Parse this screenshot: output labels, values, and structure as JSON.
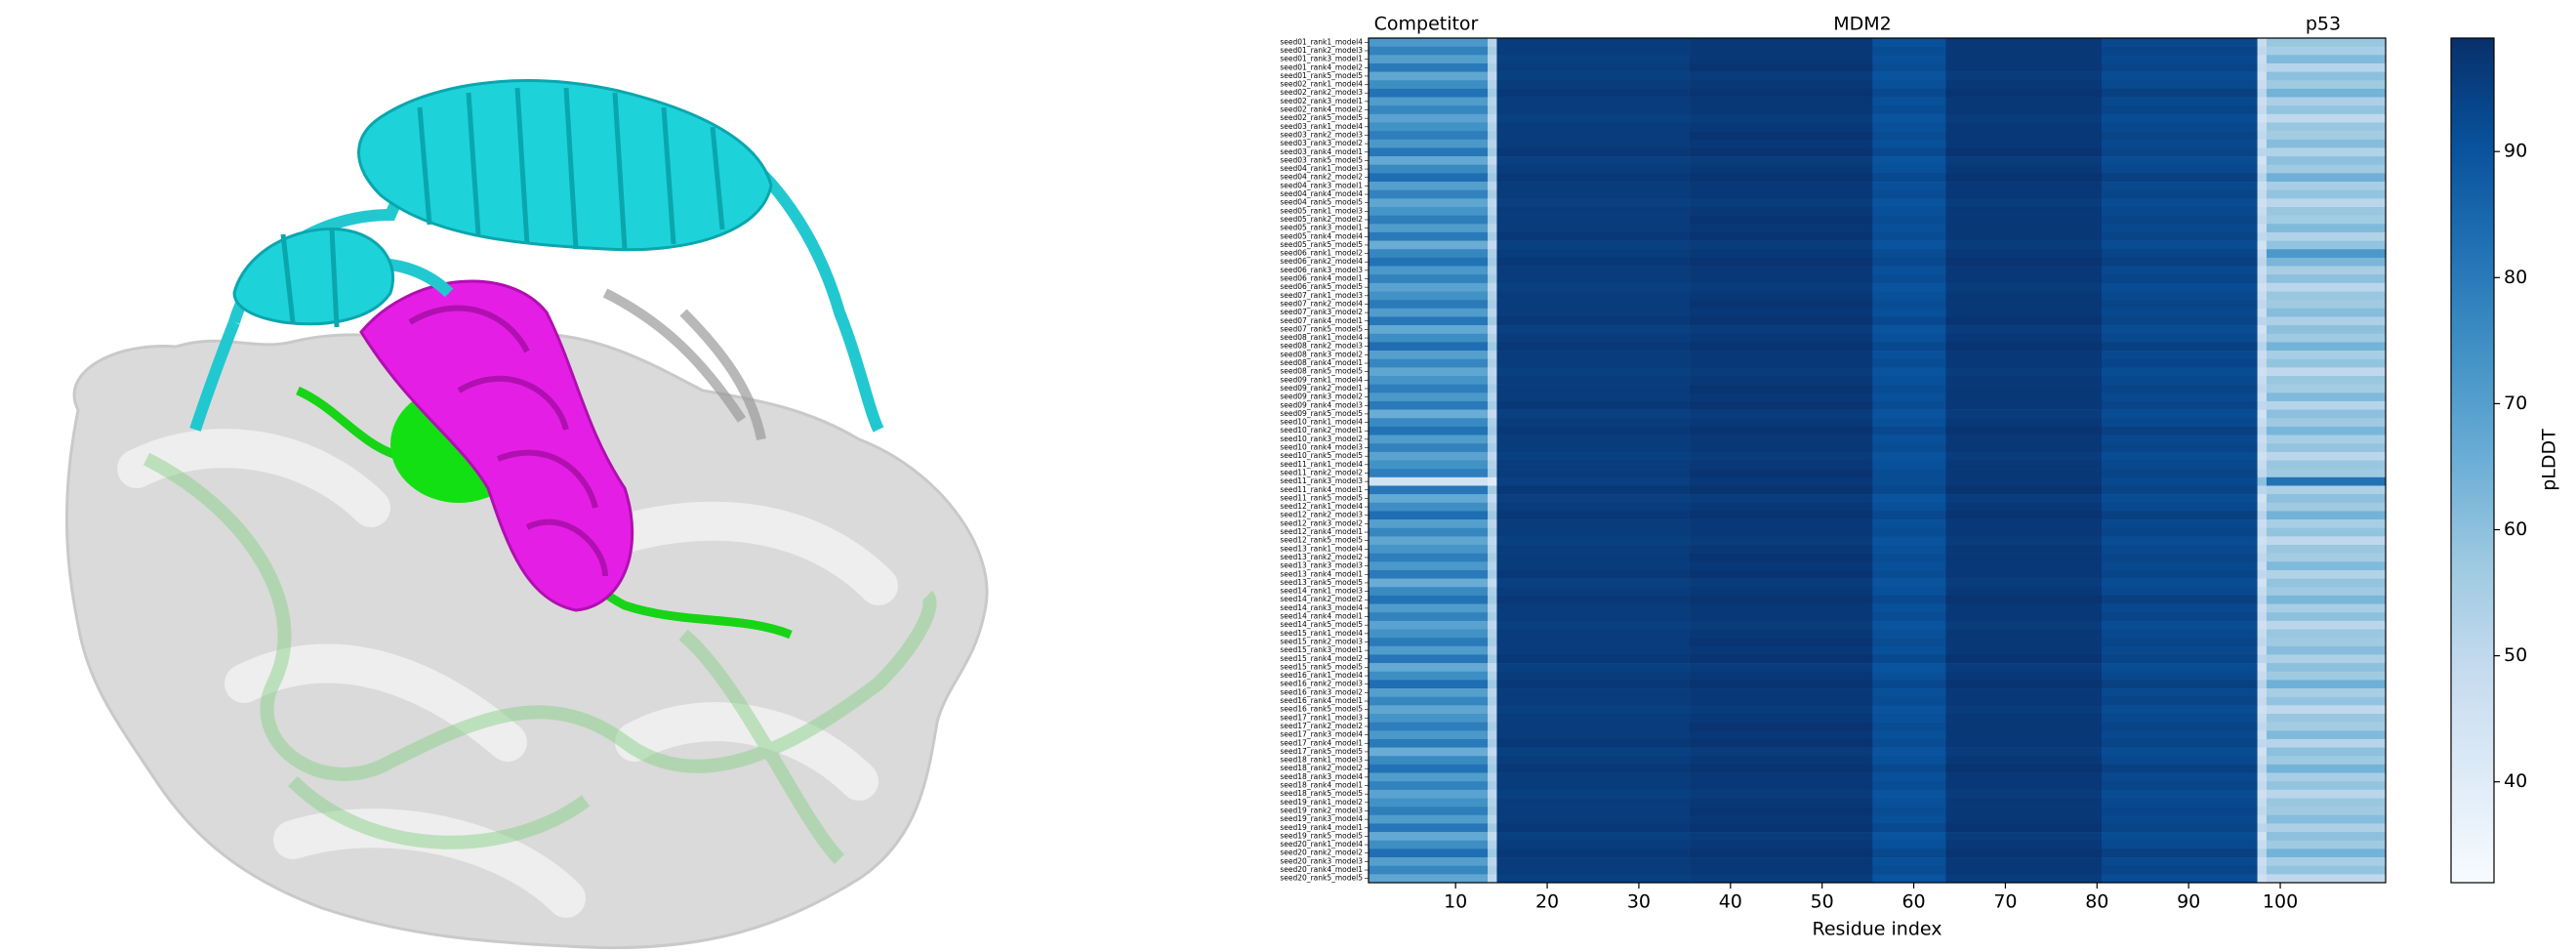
{
  "chart_data": {
    "type": "heatmap",
    "xlabel": "Residue index",
    "colorbar_label": "pLDDT",
    "region_labels": [
      "Competitor",
      "MDM2",
      "p53"
    ],
    "colormap": "Blues",
    "xlim": [
      0.5,
      111.5
    ],
    "xticks": [
      10,
      20,
      30,
      40,
      50,
      60,
      70,
      80,
      90,
      100
    ],
    "clim": [
      32,
      99
    ],
    "cticks": [
      40,
      50,
      60,
      70,
      80,
      90
    ],
    "x_edges": [
      0.5,
      13.5,
      14.5,
      35.5,
      55.5,
      63.5,
      80.5,
      97.5,
      98.5,
      111.5
    ],
    "rows": [
      "seed01_rank1_model4",
      "seed01_rank2_model3",
      "seed01_rank3_model1",
      "seed01_rank4_model2",
      "seed01_rank5_model5",
      "seed02_rank1_model4",
      "seed02_rank2_model3",
      "seed02_rank3_model1",
      "seed02_rank4_model2",
      "seed02_rank5_model5",
      "seed03_rank1_model4",
      "seed03_rank2_model3",
      "seed03_rank3_model2",
      "seed03_rank4_model1",
      "seed03_rank5_model5",
      "seed04_rank1_model3",
      "seed04_rank2_model2",
      "seed04_rank3_model1",
      "seed04_rank4_model4",
      "seed04_rank5_model5",
      "seed05_rank1_model3",
      "seed05_rank2_model2",
      "seed05_rank3_model1",
      "seed05_rank4_model4",
      "seed05_rank5_model5",
      "seed06_rank1_model2",
      "seed06_rank2_model4",
      "seed06_rank3_model3",
      "seed06_rank4_model1",
      "seed06_rank5_model5",
      "seed07_rank1_model3",
      "seed07_rank2_model4",
      "seed07_rank3_model2",
      "seed07_rank4_model1",
      "seed07_rank5_model5",
      "seed08_rank1_model4",
      "seed08_rank2_model3",
      "seed08_rank3_model2",
      "seed08_rank4_model1",
      "seed08_rank5_model5",
      "seed09_rank1_model4",
      "seed09_rank2_model1",
      "seed09_rank3_model2",
      "seed09_rank4_model3",
      "seed09_rank5_model5",
      "seed10_rank1_model4",
      "seed10_rank2_model1",
      "seed10_rank3_model2",
      "seed10_rank4_model3",
      "seed10_rank5_model5",
      "seed11_rank1_model4",
      "seed11_rank2_model2",
      "seed11_rank3_model3",
      "seed11_rank4_model1",
      "seed11_rank5_model5",
      "seed12_rank1_model4",
      "seed12_rank2_model3",
      "seed12_rank3_model2",
      "seed12_rank4_model1",
      "seed12_rank5_model5",
      "seed13_rank1_model4",
      "seed13_rank2_model2",
      "seed13_rank3_model3",
      "seed13_rank4_model1",
      "seed13_rank5_model5",
      "seed14_rank1_model3",
      "seed14_rank2_model2",
      "seed14_rank3_model4",
      "seed14_rank4_model1",
      "seed14_rank5_model5",
      "seed15_rank1_model4",
      "seed15_rank2_model3",
      "seed15_rank3_model1",
      "seed15_rank4_model2",
      "seed15_rank5_model5",
      "seed16_rank1_model4",
      "seed16_rank2_model3",
      "seed16_rank3_model2",
      "seed16_rank4_model1",
      "seed16_rank5_model5",
      "seed17_rank1_model3",
      "seed17_rank2_model2",
      "seed17_rank3_model4",
      "seed17_rank4_model1",
      "seed17_rank5_model5",
      "seed18_rank1_model3",
      "seed18_rank2_model2",
      "seed18_rank3_model4",
      "seed18_rank4_model1",
      "seed18_rank5_model5",
      "seed19_rank1_model2",
      "seed19_rank2_model3",
      "seed19_rank3_model4",
      "seed19_rank4_model1",
      "seed19_rank5_model5",
      "seed20_rank1_model4",
      "seed20_rank2_model2",
      "seed20_rank3_model3",
      "seed20_rank4_model1",
      "seed20_rank5_model5"
    ],
    "matrix": [
      [
        72,
        52,
        96,
        97,
        91,
        97,
        93,
        48,
        58
      ],
      [
        78,
        55,
        96,
        97,
        92,
        97,
        94,
        50,
        55
      ],
      [
        70,
        51,
        95,
        97,
        91,
        97,
        93,
        47,
        62
      ],
      [
        80,
        54,
        96,
        98,
        92,
        97,
        94,
        49,
        52
      ],
      [
        68,
        50,
        95,
        96,
        90,
        96,
        92,
        46,
        60
      ],
      [
        75,
        53,
        96,
        97,
        91,
        97,
        93,
        48,
        57
      ],
      [
        82,
        56,
        97,
        98,
        93,
        98,
        95,
        51,
        64
      ],
      [
        71,
        52,
        96,
        97,
        91,
        97,
        93,
        47,
        54
      ],
      [
        77,
        54,
        96,
        97,
        92,
        97,
        94,
        49,
        59
      ],
      [
        69,
        50,
        95,
        96,
        90,
        96,
        92,
        45,
        50
      ],
      [
        74,
        53,
        96,
        97,
        91,
        97,
        93,
        48,
        58
      ],
      [
        79,
        55,
        96,
        98,
        92,
        97,
        94,
        50,
        56
      ],
      [
        72,
        52,
        96,
        97,
        91,
        97,
        93,
        47,
        61
      ],
      [
        81,
        56,
        97,
        98,
        93,
        98,
        94,
        51,
        53
      ],
      [
        67,
        49,
        95,
        96,
        90,
        96,
        92,
        45,
        60
      ],
      [
        76,
        54,
        96,
        97,
        91,
        97,
        93,
        48,
        57
      ],
      [
        83,
        57,
        97,
        98,
        93,
        98,
        95,
        52,
        65
      ],
      [
        70,
        51,
        96,
        97,
        91,
        97,
        93,
        47,
        55
      ],
      [
        78,
        55,
        96,
        97,
        92,
        97,
        94,
        49,
        59
      ],
      [
        68,
        50,
        95,
        96,
        90,
        96,
        92,
        46,
        51
      ],
      [
        73,
        52,
        96,
        97,
        91,
        97,
        93,
        48,
        58
      ],
      [
        79,
        55,
        96,
        98,
        92,
        97,
        94,
        50,
        56
      ],
      [
        71,
        51,
        96,
        97,
        91,
        97,
        93,
        47,
        62
      ],
      [
        80,
        55,
        97,
        98,
        92,
        97,
        94,
        50,
        53
      ],
      [
        66,
        49,
        95,
        96,
        90,
        96,
        92,
        45,
        59
      ],
      [
        77,
        54,
        96,
        97,
        92,
        97,
        94,
        49,
        72
      ],
      [
        82,
        56,
        97,
        98,
        93,
        98,
        95,
        51,
        63
      ],
      [
        72,
        52,
        96,
        97,
        91,
        97,
        93,
        47,
        55
      ],
      [
        78,
        55,
        96,
        97,
        92,
        97,
        94,
        49,
        60
      ],
      [
        69,
        50,
        95,
        96,
        90,
        96,
        92,
        46,
        51
      ],
      [
        74,
        53,
        96,
        97,
        91,
        97,
        93,
        48,
        58
      ],
      [
        80,
        55,
        96,
        98,
        92,
        97,
        94,
        50,
        57
      ],
      [
        71,
        51,
        96,
        97,
        91,
        97,
        93,
        47,
        61
      ],
      [
        81,
        56,
        97,
        98,
        93,
        98,
        94,
        51,
        54
      ],
      [
        67,
        49,
        95,
        96,
        90,
        96,
        92,
        45,
        60
      ],
      [
        75,
        53,
        96,
        97,
        91,
        97,
        93,
        48,
        57
      ],
      [
        83,
        57,
        97,
        98,
        93,
        98,
        95,
        52,
        64
      ],
      [
        70,
        51,
        96,
        97,
        91,
        97,
        93,
        47,
        55
      ],
      [
        77,
        54,
        96,
        97,
        92,
        97,
        94,
        49,
        59
      ],
      [
        68,
        50,
        95,
        96,
        90,
        96,
        92,
        46,
        50
      ],
      [
        73,
        52,
        96,
        97,
        91,
        97,
        93,
        48,
        58
      ],
      [
        79,
        55,
        96,
        98,
        92,
        97,
        94,
        50,
        56
      ],
      [
        72,
        52,
        96,
        97,
        91,
        97,
        93,
        47,
        62
      ],
      [
        80,
        55,
        97,
        98,
        92,
        97,
        94,
        50,
        52
      ],
      [
        66,
        49,
        95,
        96,
        90,
        96,
        92,
        45,
        60
      ],
      [
        76,
        54,
        96,
        97,
        91,
        97,
        93,
        48,
        57
      ],
      [
        82,
        56,
        97,
        98,
        93,
        98,
        95,
        51,
        63
      ],
      [
        71,
        52,
        96,
        97,
        91,
        97,
        93,
        47,
        55
      ],
      [
        78,
        55,
        96,
        97,
        92,
        97,
        94,
        49,
        59
      ],
      [
        69,
        50,
        95,
        96,
        90,
        96,
        92,
        46,
        51
      ],
      [
        74,
        53,
        96,
        97,
        91,
        97,
        93,
        48,
        58
      ],
      [
        79,
        55,
        96,
        98,
        92,
        97,
        94,
        50,
        57
      ],
      [
        45,
        40,
        95,
        97,
        92,
        97,
        93,
        60,
        82
      ],
      [
        81,
        56,
        97,
        98,
        93,
        98,
        94,
        51,
        54
      ],
      [
        67,
        49,
        95,
        96,
        90,
        96,
        92,
        45,
        60
      ],
      [
        75,
        53,
        96,
        97,
        91,
        97,
        93,
        48,
        57
      ],
      [
        83,
        57,
        97,
        98,
        93,
        98,
        95,
        52,
        64
      ],
      [
        70,
        51,
        96,
        97,
        91,
        97,
        93,
        47,
        55
      ],
      [
        77,
        54,
        96,
        97,
        92,
        97,
        94,
        49,
        59
      ],
      [
        68,
        50,
        95,
        96,
        90,
        96,
        92,
        46,
        50
      ],
      [
        73,
        52,
        96,
        97,
        91,
        97,
        93,
        48,
        58
      ],
      [
        79,
        55,
        96,
        98,
        92,
        97,
        94,
        50,
        56
      ],
      [
        72,
        52,
        96,
        97,
        91,
        97,
        93,
        47,
        62
      ],
      [
        80,
        55,
        97,
        98,
        92,
        97,
        94,
        50,
        53
      ],
      [
        66,
        49,
        95,
        96,
        90,
        96,
        92,
        45,
        59
      ],
      [
        76,
        54,
        96,
        97,
        91,
        97,
        93,
        48,
        57
      ],
      [
        82,
        56,
        97,
        98,
        93,
        98,
        95,
        51,
        63
      ],
      [
        71,
        52,
        96,
        97,
        91,
        97,
        93,
        47,
        55
      ],
      [
        78,
        55,
        96,
        97,
        92,
        97,
        94,
        49,
        60
      ],
      [
        69,
        50,
        95,
        96,
        90,
        96,
        92,
        46,
        51
      ],
      [
        74,
        53,
        96,
        97,
        91,
        97,
        93,
        48,
        58
      ],
      [
        80,
        55,
        96,
        98,
        92,
        97,
        94,
        50,
        57
      ],
      [
        71,
        51,
        96,
        97,
        91,
        97,
        93,
        47,
        61
      ],
      [
        81,
        56,
        97,
        98,
        93,
        98,
        94,
        51,
        54
      ],
      [
        67,
        49,
        95,
        96,
        90,
        96,
        92,
        45,
        60
      ],
      [
        75,
        53,
        96,
        97,
        91,
        97,
        93,
        48,
        57
      ],
      [
        83,
        57,
        97,
        98,
        93,
        98,
        95,
        52,
        65
      ],
      [
        70,
        51,
        96,
        97,
        91,
        97,
        93,
        47,
        55
      ],
      [
        77,
        54,
        96,
        97,
        92,
        97,
        94,
        49,
        59
      ],
      [
        68,
        50,
        95,
        96,
        90,
        96,
        92,
        46,
        50
      ],
      [
        73,
        52,
        96,
        97,
        91,
        97,
        93,
        48,
        58
      ],
      [
        79,
        55,
        96,
        98,
        92,
        97,
        94,
        50,
        56
      ],
      [
        72,
        52,
        96,
        97,
        91,
        97,
        93,
        47,
        62
      ],
      [
        80,
        55,
        97,
        98,
        92,
        97,
        94,
        50,
        52
      ],
      [
        66,
        49,
        95,
        96,
        90,
        96,
        92,
        45,
        60
      ],
      [
        76,
        54,
        96,
        97,
        91,
        97,
        93,
        48,
        57
      ],
      [
        82,
        56,
        97,
        98,
        93,
        98,
        95,
        51,
        64
      ],
      [
        71,
        52,
        96,
        97,
        91,
        97,
        93,
        47,
        55
      ],
      [
        78,
        55,
        96,
        97,
        92,
        97,
        94,
        49,
        59
      ],
      [
        69,
        50,
        95,
        96,
        90,
        96,
        92,
        46,
        51
      ],
      [
        74,
        53,
        96,
        97,
        91,
        97,
        93,
        48,
        58
      ],
      [
        79,
        55,
        96,
        98,
        92,
        97,
        94,
        50,
        57
      ],
      [
        71,
        51,
        96,
        97,
        91,
        97,
        93,
        47,
        61
      ],
      [
        81,
        56,
        97,
        98,
        93,
        98,
        94,
        51,
        54
      ],
      [
        67,
        49,
        95,
        96,
        90,
        96,
        92,
        45,
        60
      ],
      [
        75,
        53,
        96,
        97,
        91,
        97,
        93,
        48,
        57
      ],
      [
        83,
        57,
        97,
        98,
        93,
        98,
        95,
        52,
        64
      ],
      [
        70,
        51,
        96,
        97,
        91,
        97,
        93,
        47,
        55
      ],
      [
        77,
        54,
        96,
        97,
        92,
        97,
        94,
        49,
        59
      ],
      [
        68,
        50,
        95,
        96,
        90,
        96,
        92,
        46,
        50
      ]
    ]
  }
}
